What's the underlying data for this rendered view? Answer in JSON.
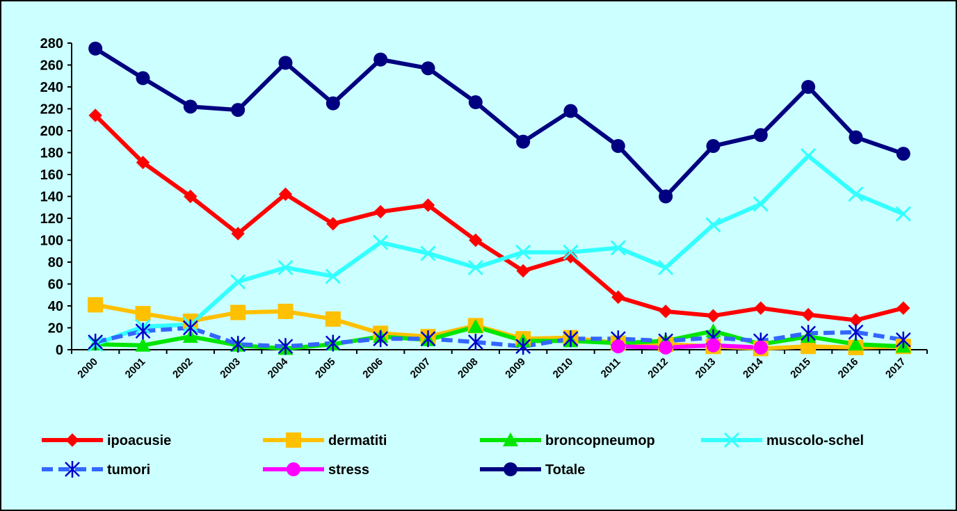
{
  "chart_data": {
    "type": "line",
    "categories": [
      "2000",
      "2001",
      "2002",
      "2003",
      "2004",
      "2005",
      "2006",
      "2007",
      "2008",
      "2009",
      "2010",
      "2011",
      "2012",
      "2013",
      "2014",
      "2015",
      "2016",
      "2017"
    ],
    "ylim": [
      0,
      280
    ],
    "yticks": [
      0,
      20,
      40,
      60,
      80,
      100,
      120,
      140,
      160,
      180,
      200,
      220,
      240,
      260,
      280
    ],
    "legend": "bottom",
    "series": [
      {
        "name": "ipoacusie",
        "color": "#ff0000",
        "marker": "diamond",
        "values": [
          214,
          171,
          140,
          106,
          142,
          115,
          126,
          132,
          100,
          72,
          85,
          48,
          35,
          31,
          38,
          32,
          27,
          38
        ]
      },
      {
        "name": "dermatiti",
        "color": "#ffc000",
        "marker": "square",
        "values": [
          41,
          33,
          26,
          34,
          35,
          28,
          15,
          12,
          22,
          10,
          11,
          6,
          5,
          3,
          1,
          3,
          2,
          3
        ]
      },
      {
        "name": "broncopneumop",
        "color": "#00e600",
        "marker": "triangle",
        "values": [
          5,
          4,
          12,
          4,
          1,
          5,
          12,
          9,
          21,
          8,
          8,
          6,
          8,
          17,
          5,
          12,
          5,
          3
        ]
      },
      {
        "name": "muscolo-schel",
        "color": "#33ffff",
        "marker": "x",
        "values": [
          5,
          21,
          23,
          62,
          75,
          67,
          98,
          88,
          75,
          89,
          89,
          93,
          75,
          114,
          133,
          177,
          142,
          124
        ]
      },
      {
        "name": "tumori",
        "color": "#3366ff",
        "marker": "asterisk",
        "dashed": true,
        "values": [
          7,
          17,
          20,
          5,
          3,
          6,
          10,
          10,
          7,
          3,
          10,
          10,
          8,
          11,
          8,
          15,
          16,
          9
        ]
      },
      {
        "name": "stress",
        "color": "#ff00ff",
        "marker": "circle",
        "values": [
          null,
          null,
          null,
          null,
          null,
          null,
          null,
          null,
          null,
          null,
          null,
          3,
          2,
          4,
          2,
          null,
          null,
          null
        ]
      },
      {
        "name": "Totale",
        "color": "#000080",
        "marker": "circle",
        "values": [
          275,
          248,
          222,
          219,
          262,
          225,
          265,
          257,
          226,
          190,
          218,
          186,
          140,
          186,
          196,
          240,
          194,
          179
        ]
      }
    ]
  }
}
